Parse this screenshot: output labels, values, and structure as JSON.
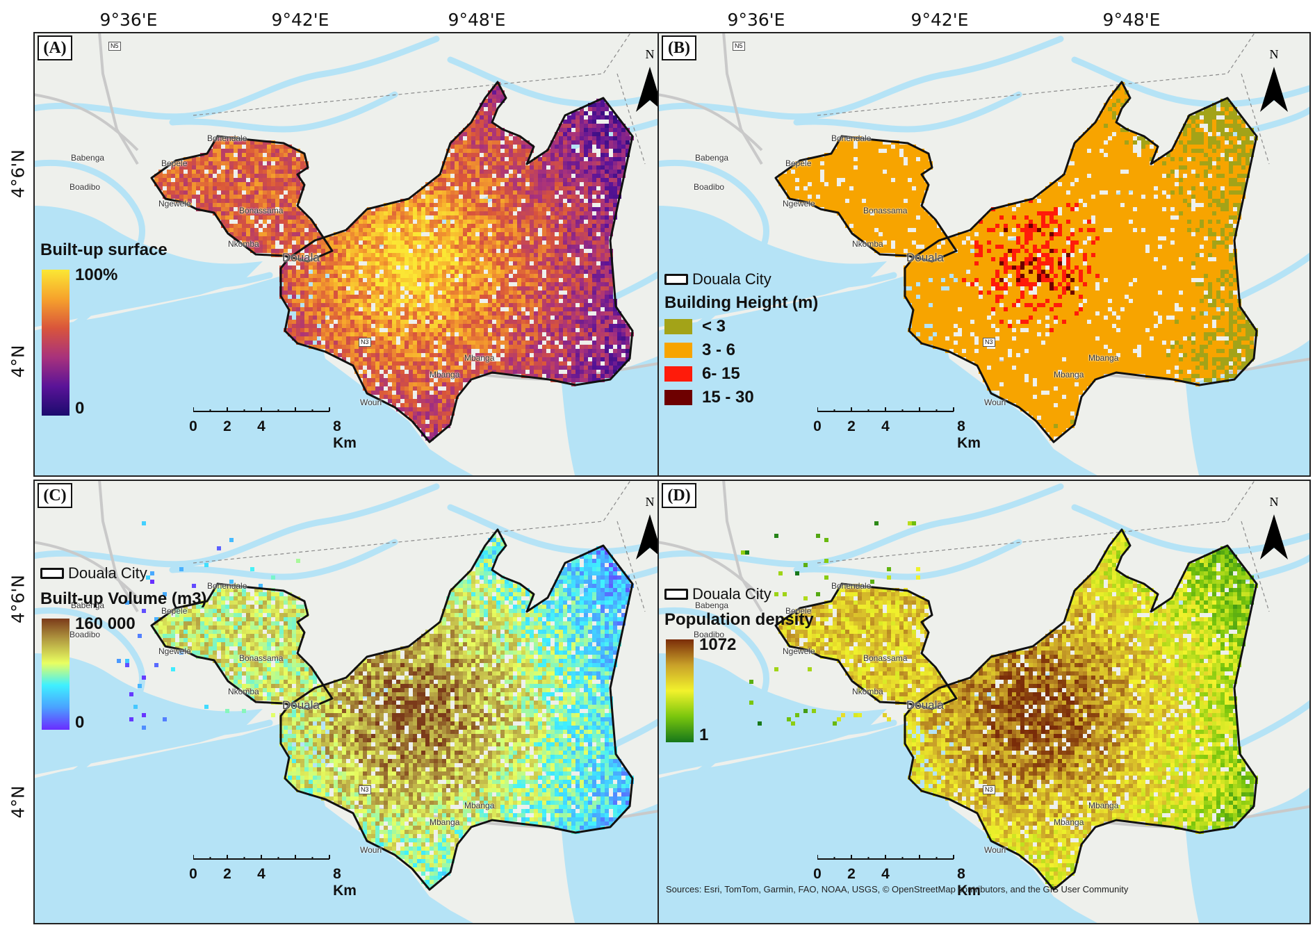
{
  "axes": {
    "lon_labels": [
      "9°36'E",
      "9°42'E",
      "9°48'E"
    ],
    "lat_labels": [
      "4°6'N",
      "4°N"
    ]
  },
  "places": {
    "babenga": "Babenga",
    "boadibo": "Boadibo",
    "bonendale": "Bonendale",
    "bepele": "Bepele",
    "ngewele": "Ngewele",
    "bonassama": "Bonassama",
    "nkomba": "Nkomba",
    "douala": "Douala",
    "mbanga": "Mbanga",
    "wouri": "Wouri",
    "n3": "N3",
    "n5": "N5"
  },
  "north_label": "N",
  "scale": {
    "ticks": [
      "0",
      "2",
      "4",
      "8 Km"
    ]
  },
  "city_legend": "Douala City",
  "panels": [
    {
      "id": "A",
      "label": "(A)",
      "legend_title": "Built-up surface",
      "legend_max": "100%",
      "legend_min": "0",
      "colors": [
        "#1b0b6e",
        "#5a1398",
        "#a8327c",
        "#d9553b",
        "#f6a22c",
        "#fbe734"
      ]
    },
    {
      "id": "B",
      "label": "(B)",
      "legend_title": "Building Height (m)",
      "classes": [
        {
          "label": "< 3",
          "color": "#a3a318"
        },
        {
          "label": "3 - 6",
          "color": "#f7a400"
        },
        {
          "label": "6- 15",
          "color": "#ff1b0a"
        },
        {
          "label": "15 - 30",
          "color": "#6e0000"
        }
      ]
    },
    {
      "id": "C",
      "label": "(C)",
      "legend_title": "Built-up Volume (m3)",
      "legend_max": "160 000",
      "legend_min": "0",
      "colors": [
        "#6a2cff",
        "#4aa1ff",
        "#3ff0ff",
        "#e9ff60",
        "#b5a143",
        "#7b3a1a"
      ]
    },
    {
      "id": "D",
      "label": "(D)",
      "legend_title": "Population density",
      "legend_max": "1072",
      "legend_min": "1",
      "colors": [
        "#16771a",
        "#7ac60d",
        "#f2f22c",
        "#c9a129",
        "#7a2c09"
      ]
    }
  ],
  "sources": "Sources: Esri, TomTom, Garmin, FAO, NOAA, USGS, © OpenStreetMap contributors, and the GIS User Community",
  "water_color": "#b5e3f6",
  "land_color": "#eef0ec"
}
